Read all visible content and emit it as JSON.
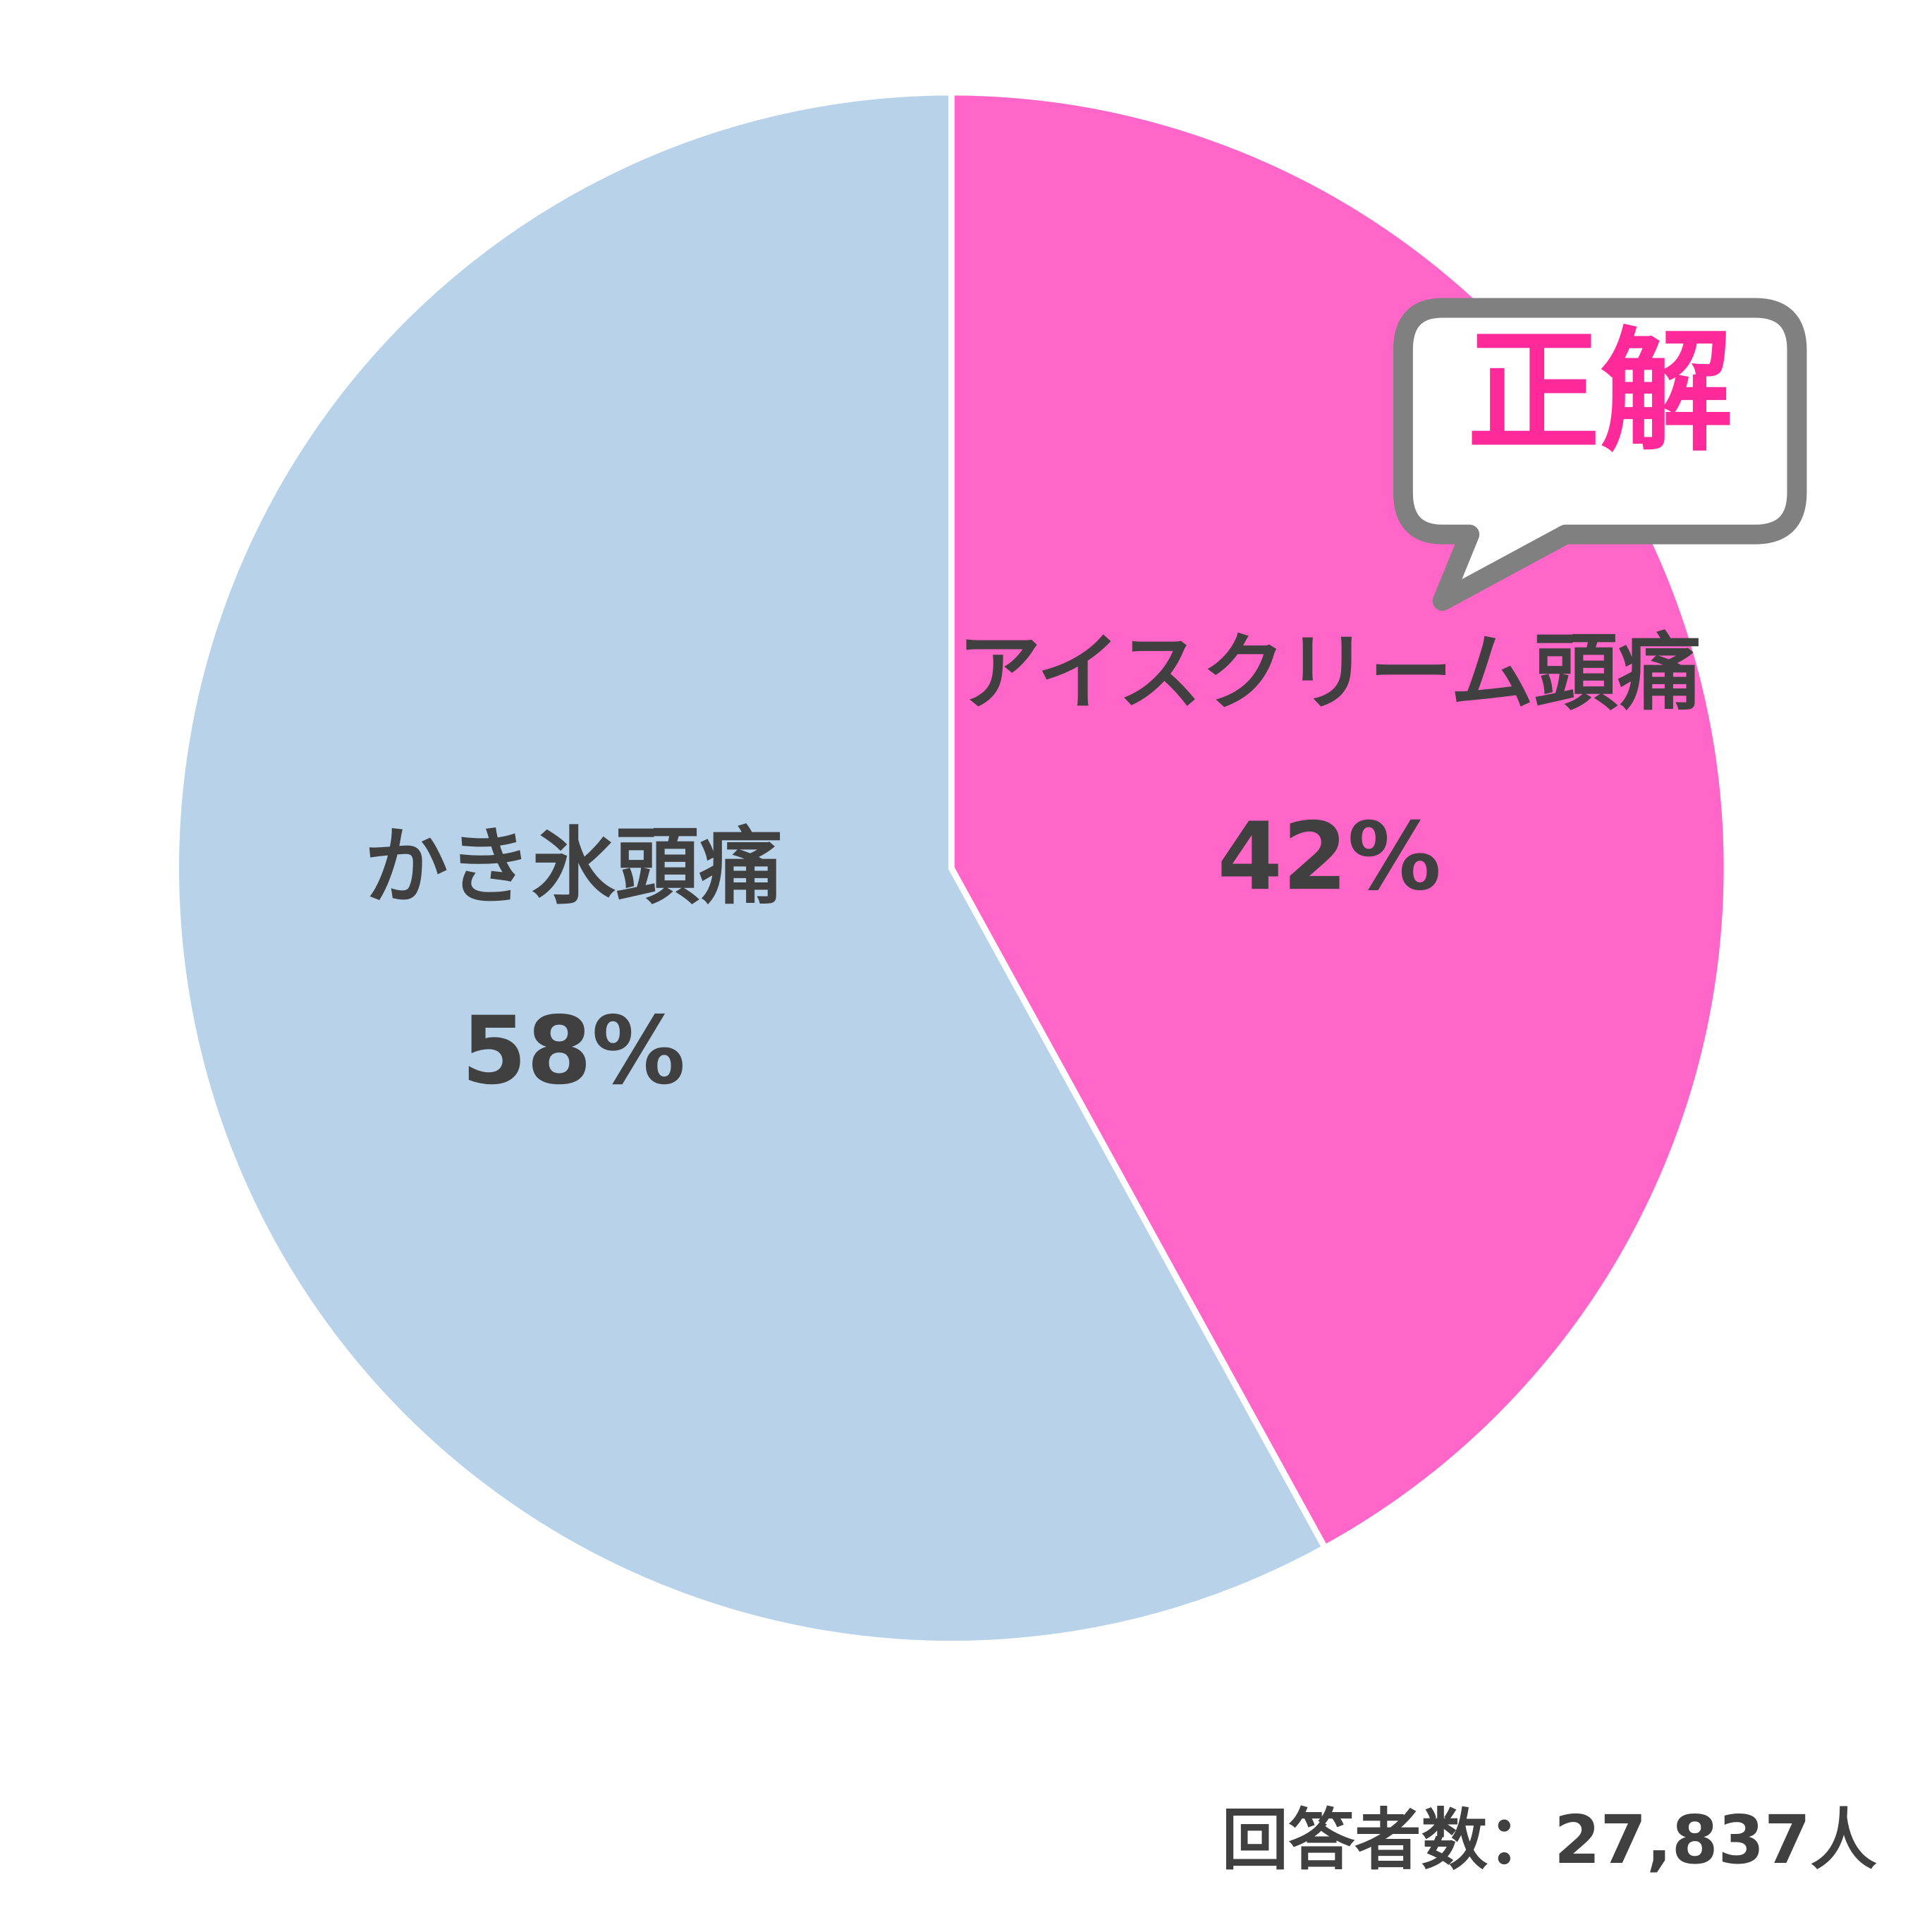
{
  "chart_data": {
    "type": "pie",
    "categories": [
      "アイスクリーム頭痛",
      "かき氷頭痛"
    ],
    "values": [
      42,
      58
    ],
    "value_labels": [
      "42%",
      "58%"
    ],
    "colors": [
      "#ff66c8",
      "#b7d2e9"
    ],
    "annotation": "正解",
    "note": "回答者数：27,837人"
  }
}
